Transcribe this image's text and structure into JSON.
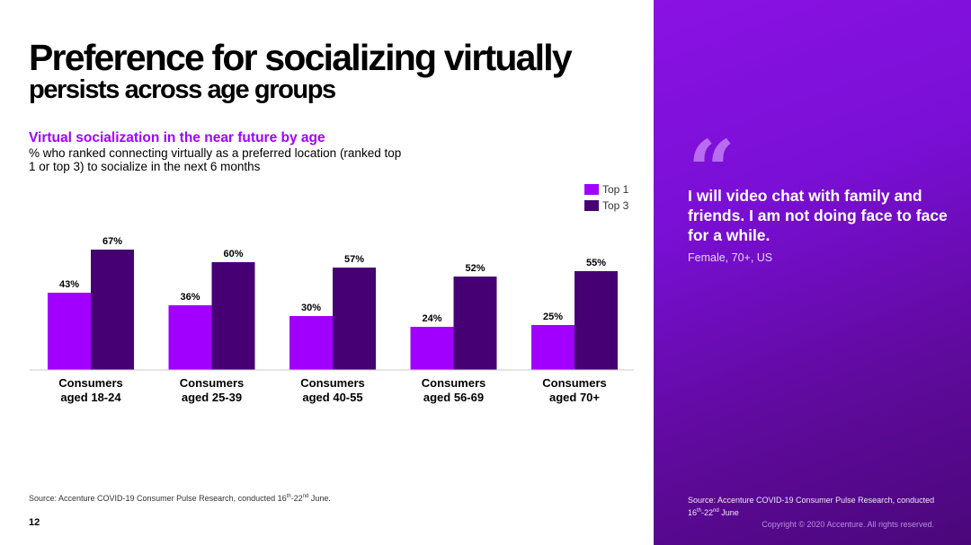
{
  "title_line1": "Preference for socializing virtually",
  "title_line2": "persists across age groups",
  "chart_data": {
    "type": "bar",
    "title": "Virtual socialization in the near future by age",
    "subtitle": "% who ranked connecting virtually as a preferred location (ranked top 1 or top 3) to socialize in the next 6 months",
    "categories": [
      [
        "Consumers",
        "aged 18-24"
      ],
      [
        "Consumers",
        "aged 25-39"
      ],
      [
        "Consumers",
        "aged 40-55"
      ],
      [
        "Consumers",
        "aged 56-69"
      ],
      [
        "Consumers",
        "aged 70+"
      ]
    ],
    "series": [
      {
        "name": "Top 1",
        "values": [
          43,
          36,
          30,
          24,
          25
        ],
        "labels": [
          "43%",
          "36%",
          "30%",
          "24%",
          "25%"
        ],
        "color": "#a100ff"
      },
      {
        "name": "Top 3",
        "values": [
          67,
          60,
          57,
          52,
          55
        ],
        "labels": [
          "67%",
          "60%",
          "57%",
          "52%",
          "55%"
        ],
        "color": "#460073"
      }
    ],
    "ylim": [
      0,
      100
    ],
    "legend": "top-right",
    "grid": false
  },
  "source_left": {
    "prefix": "Source: Accenture COVID-19 Consumer Pulse Research, conducted 16",
    "sup1": "th",
    "mid": "-22",
    "sup2": "nd",
    "suffix": " June."
  },
  "page_number": "12",
  "quote": {
    "mark": "“",
    "text": "I will video chat with family and friends. I am not doing face to face for a while.",
    "author": "Female, 70+, US"
  },
  "source_right": {
    "prefix": "Source: Accenture COVID-19 Consumer Pulse Research, conducted 16",
    "sup1": "th",
    "mid": "-22",
    "sup2": "nd",
    "suffix": " June"
  },
  "copyright": "Copyright © 2020 Accenture. All rights reserved."
}
